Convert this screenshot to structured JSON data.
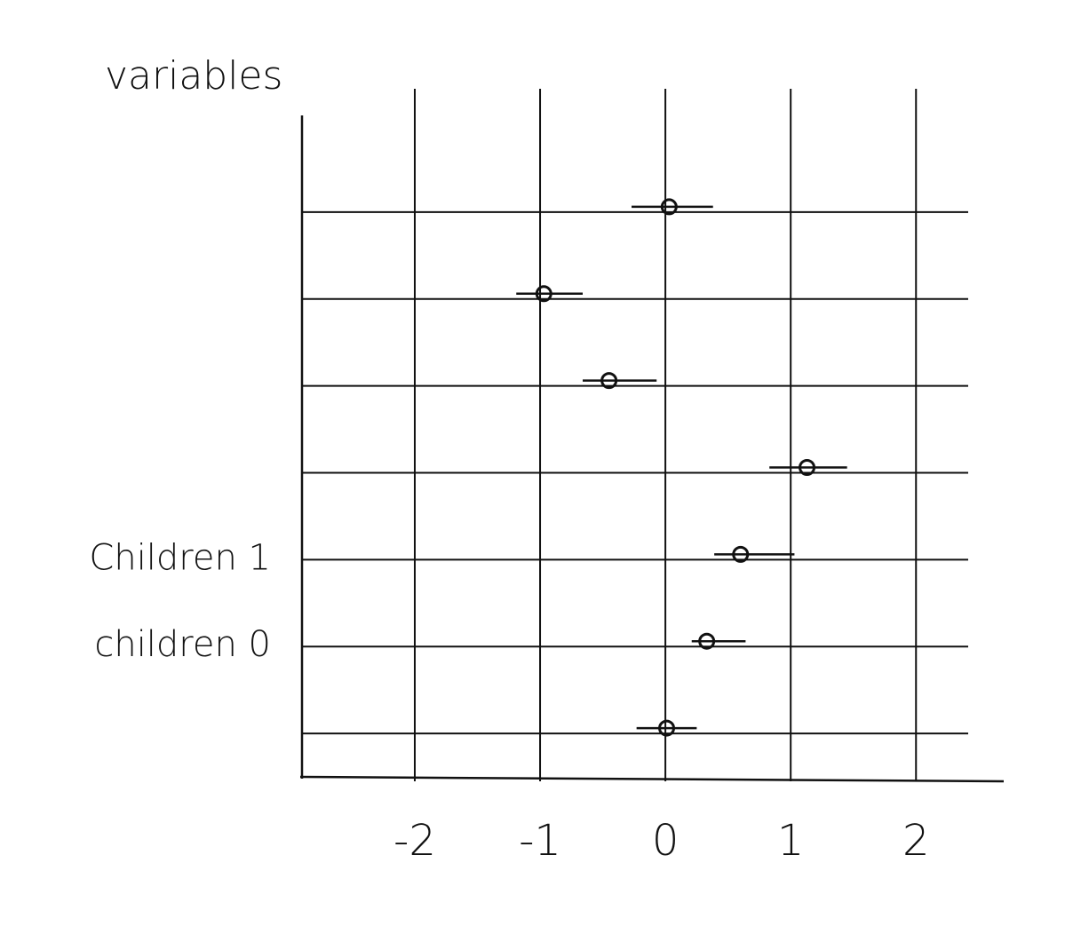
{
  "chart_data": {
    "type": "forest",
    "title": "variables",
    "categories": [
      null,
      null,
      null,
      null,
      "Children 1",
      "children 0",
      null
    ],
    "values": [
      0.03,
      -0.97,
      -0.45,
      1.13,
      0.6,
      0.33,
      0.01
    ],
    "lower": [
      -0.27,
      -1.19,
      -0.66,
      0.83,
      0.39,
      0.21,
      -0.23
    ],
    "upper": [
      0.38,
      -0.66,
      -0.07,
      1.45,
      1.03,
      0.64,
      0.25
    ],
    "color": "#111111",
    "xlim": [
      -2.9,
      2.7
    ],
    "xticks": [
      -2,
      -1,
      0,
      1,
      2
    ],
    "grid": true
  }
}
